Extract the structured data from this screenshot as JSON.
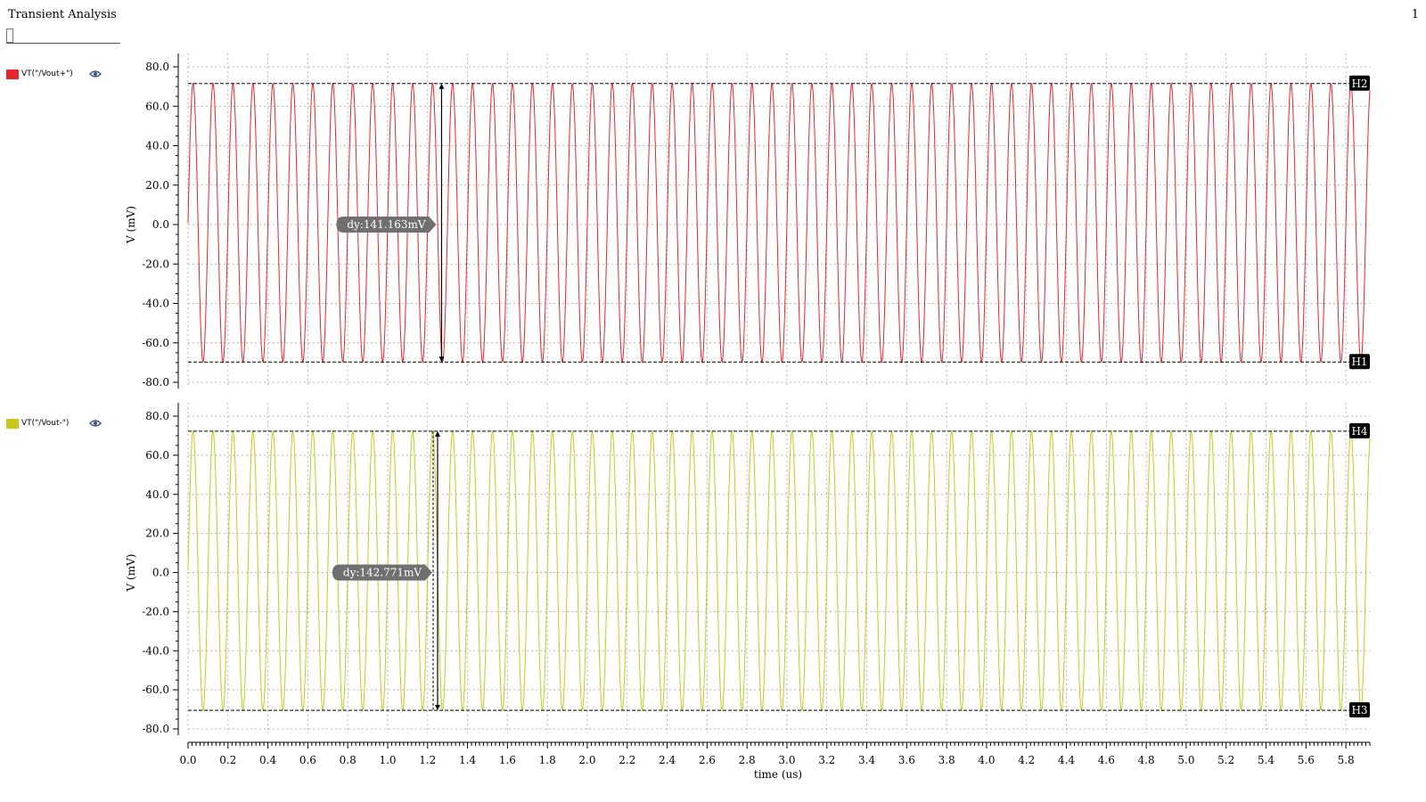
{
  "header": {
    "title": "Transient Analysis",
    "page_number": "1"
  },
  "colors": {
    "trace1": "#e8242c",
    "trace2": "#c8c81e",
    "grid": "#b4b4b4",
    "marker_bg": "#000000",
    "label_bg": "#707070"
  },
  "legend": [
    {
      "label": "VT(\"/Vout+\")",
      "icon": "eye-icon"
    },
    {
      "label": "VT(\"/Vout-\")",
      "icon": "eye-icon"
    }
  ],
  "chart_data": [
    {
      "type": "line",
      "ylabel": "V (mV)",
      "xlabel": "time (us)",
      "xlim": [
        0.0,
        5.92
      ],
      "ylim": [
        -80,
        80
      ],
      "x_ticks": [
        "0.0",
        "0.2",
        "0.4",
        "0.6",
        "0.8",
        "1.0",
        "1.2",
        "1.4",
        "1.6",
        "1.8",
        "2.0",
        "2.2",
        "2.4",
        "2.6",
        "2.8",
        "3.0",
        "3.2",
        "3.4",
        "3.6",
        "3.8",
        "4.0",
        "4.2",
        "4.4",
        "4.6",
        "4.8",
        "5.0",
        "5.2",
        "5.4",
        "5.6",
        "5.8"
      ],
      "y_ticks": [
        "80.0",
        "60.0",
        "40.0",
        "20.0",
        "0.0",
        "-20.0",
        "-40.0",
        "-60.0",
        "-80.0"
      ],
      "series": [
        {
          "name": "VT(\"/Vout+\")",
          "waveform": "sine",
          "frequency_MHz": 10,
          "max": 71.5,
          "min": -69.7,
          "start": 0.0
        }
      ],
      "markers": [
        {
          "label": "H2",
          "y": 71.5
        },
        {
          "label": "H1",
          "y": -69.7
        }
      ],
      "delta": {
        "text": "dy:141.163mV",
        "x": 1.27
      }
    },
    {
      "type": "line",
      "ylabel": "V (mV)",
      "xlabel": "time (us)",
      "xlim": [
        0.0,
        5.92
      ],
      "ylim": [
        -80,
        80
      ],
      "x_ticks": [
        "0.0",
        "0.2",
        "0.4",
        "0.6",
        "0.8",
        "1.0",
        "1.2",
        "1.4",
        "1.6",
        "1.8",
        "2.0",
        "2.2",
        "2.4",
        "2.6",
        "2.8",
        "3.0",
        "3.2",
        "3.4",
        "3.6",
        "3.8",
        "4.0",
        "4.2",
        "4.4",
        "4.6",
        "4.8",
        "5.0",
        "5.2",
        "5.4",
        "5.6",
        "5.8"
      ],
      "y_ticks": [
        "80.0",
        "60.0",
        "40.0",
        "20.0",
        "0.0",
        "-20.0",
        "-40.0",
        "-60.0",
        "-80.0"
      ],
      "series": [
        {
          "name": "VT(\"/Vout-\")",
          "waveform": "sine",
          "frequency_MHz": 10,
          "max": 72.3,
          "min": -70.5,
          "start": 0.0
        }
      ],
      "markers": [
        {
          "label": "H4",
          "y": 72.3
        },
        {
          "label": "H3",
          "y": -70.5
        }
      ],
      "delta": {
        "text": "dy:142.771mV",
        "x": 1.25
      }
    }
  ]
}
